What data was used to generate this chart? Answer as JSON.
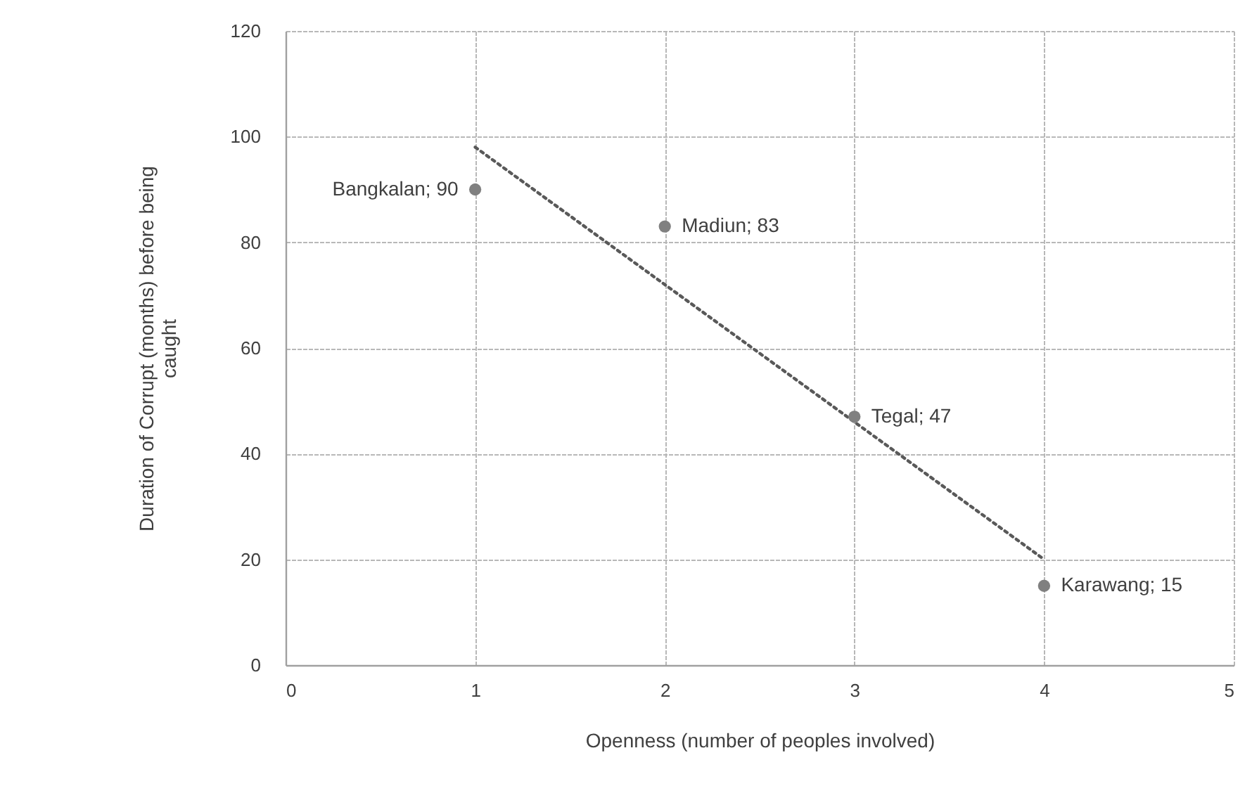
{
  "chart_data": {
    "type": "scatter",
    "xlabel": "Openness (number of peoples involved)",
    "ylabel": "Duration of Corrupt (months) before being caught",
    "x": [
      1,
      2,
      3,
      4
    ],
    "series": [
      {
        "color": "#808080",
        "marker": "circle",
        "values": [
          90,
          83,
          47,
          15
        ],
        "value_labels": [
          "Bangkalan; 90",
          "Madiun; 83",
          "Tegal; 47",
          "Karawang; 15"
        ]
      },
      {
        "type": "line",
        "x": [
          1,
          4
        ],
        "values": [
          98,
          20
        ],
        "color": "#595959",
        "line_style": "dotted"
      }
    ],
    "xlim": [
      0,
      5
    ],
    "xticks": [
      0,
      1,
      2,
      3,
      4,
      5
    ],
    "ylim": [
      0,
      120
    ],
    "yticks": [
      0,
      20,
      40,
      60,
      80,
      100,
      120
    ],
    "grid": true
  }
}
